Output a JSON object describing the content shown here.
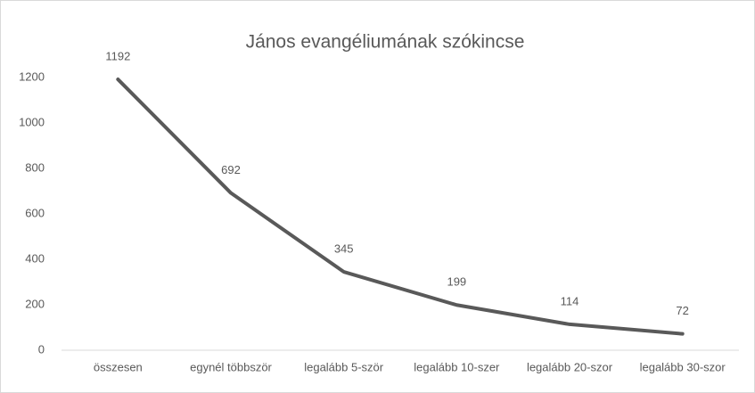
{
  "chart_data": {
    "type": "line",
    "title": "János evangéliumának szókincse",
    "categories": [
      "összesen",
      "egynél többször",
      "legalább 5-ször",
      "legalább 10-szer",
      "legalább 20-szor",
      "legalább 30-szor"
    ],
    "values": [
      1192,
      692,
      345,
      199,
      114,
      72
    ],
    "color": "#595959",
    "ylim": [
      0,
      1200
    ],
    "yticks": [
      0,
      200,
      400,
      600,
      800,
      1000,
      1200
    ],
    "grid": false
  }
}
